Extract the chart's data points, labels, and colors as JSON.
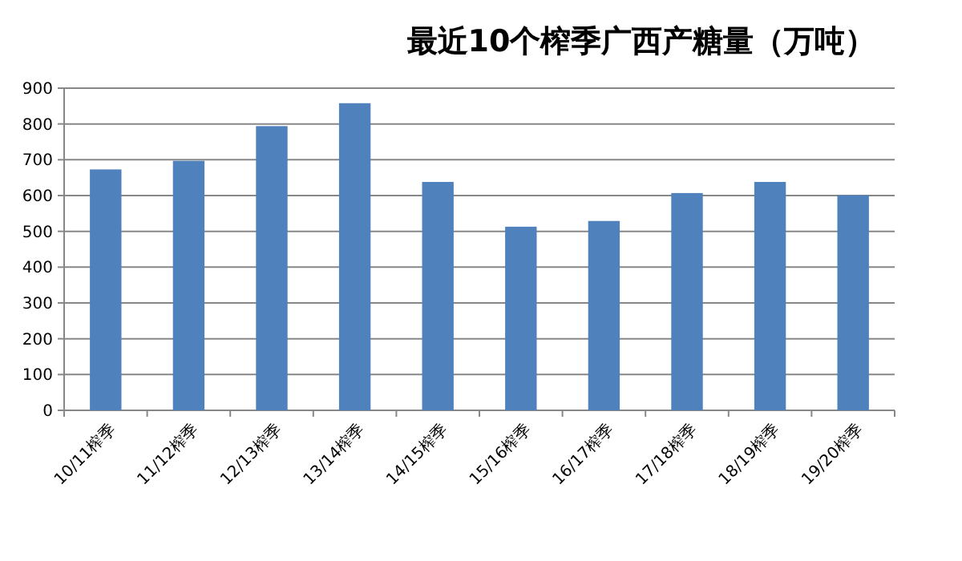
{
  "chart_data": {
    "type": "bar",
    "title": "最近10个榨季广西产糖量（万吨）",
    "categories": [
      "10/11榨季",
      "11/12榨季",
      "12/13榨季",
      "13/14榨季",
      "14/15榨季",
      "15/16榨季",
      "16/17榨季",
      "17/18榨季",
      "18/19榨季",
      "19/20榨季"
    ],
    "values": [
      673,
      697,
      794,
      858,
      638,
      513,
      529,
      607,
      638,
      601
    ],
    "color": "#4f81bd",
    "ylim": [
      0,
      900
    ],
    "yticks": [
      0,
      100,
      200,
      300,
      400,
      500,
      600,
      700,
      800,
      900
    ],
    "grid": "y"
  }
}
